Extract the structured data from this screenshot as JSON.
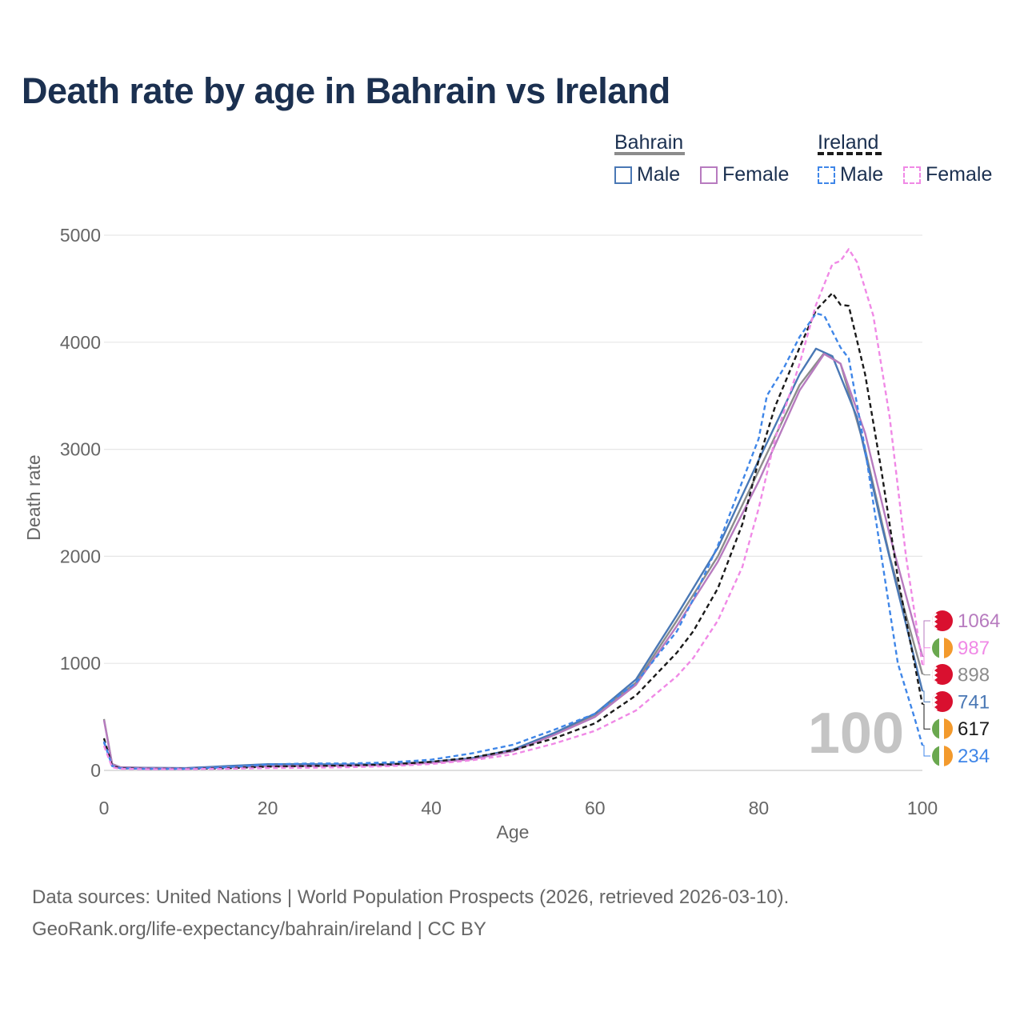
{
  "title": "Death rate by age in Bahrain vs Ireland",
  "legend": {
    "groups": [
      {
        "name": "Bahrain",
        "line_color": "#8c8c8c",
        "line_style": "solid",
        "items": [
          {
            "label": "Male",
            "color": "#4a78b5"
          },
          {
            "label": "Female",
            "color": "#b77bbf"
          }
        ]
      },
      {
        "name": "Ireland",
        "line_color": "#1a1a1a",
        "line_style": "dashed",
        "items": [
          {
            "label": "Male",
            "color": "#3f86e8"
          },
          {
            "label": "Female",
            "color": "#f089e6"
          }
        ]
      }
    ]
  },
  "chart_data": {
    "type": "line",
    "title": "Death rate by age in Bahrain vs Ireland",
    "xlabel": "Age",
    "ylabel": "Death rate",
    "xlim": [
      0,
      100
    ],
    "ylim": [
      0,
      5000
    ],
    "xticks": [
      0,
      20,
      40,
      60,
      80,
      100
    ],
    "yticks": [
      0,
      1000,
      2000,
      3000,
      4000,
      5000
    ],
    "grid": true,
    "watermark": "100",
    "series": [
      {
        "name": "Bahrain Total",
        "color": "#8c8c8c",
        "dash": "solid",
        "end_label": "898",
        "points": [
          [
            0,
            480
          ],
          [
            1,
            60
          ],
          [
            2,
            30
          ],
          [
            5,
            25
          ],
          [
            10,
            20
          ],
          [
            15,
            35
          ],
          [
            20,
            48
          ],
          [
            25,
            50
          ],
          [
            30,
            50
          ],
          [
            35,
            55
          ],
          [
            40,
            75
          ],
          [
            45,
            110
          ],
          [
            50,
            190
          ],
          [
            55,
            340
          ],
          [
            60,
            520
          ],
          [
            65,
            820
          ],
          [
            70,
            1400
          ],
          [
            75,
            2000
          ],
          [
            80,
            2800
          ],
          [
            85,
            3600
          ],
          [
            88,
            3900
          ],
          [
            90,
            3800
          ],
          [
            93,
            3000
          ],
          [
            96,
            2000
          ],
          [
            100,
            898
          ]
        ]
      },
      {
        "name": "Bahrain Male",
        "color": "#4a78b5",
        "dash": "solid",
        "end_label": "741",
        "points": [
          [
            0,
            260
          ],
          [
            1,
            55
          ],
          [
            2,
            28
          ],
          [
            5,
            24
          ],
          [
            10,
            22
          ],
          [
            15,
            40
          ],
          [
            20,
            58
          ],
          [
            25,
            58
          ],
          [
            30,
            55
          ],
          [
            35,
            60
          ],
          [
            40,
            80
          ],
          [
            45,
            115
          ],
          [
            50,
            195
          ],
          [
            55,
            350
          ],
          [
            60,
            530
          ],
          [
            65,
            850
          ],
          [
            70,
            1450
          ],
          [
            75,
            2080
          ],
          [
            80,
            2900
          ],
          [
            85,
            3700
          ],
          [
            87,
            3940
          ],
          [
            89,
            3870
          ],
          [
            92,
            3300
          ],
          [
            95,
            2300
          ],
          [
            100,
            741
          ]
        ]
      },
      {
        "name": "Bahrain Female",
        "color": "#b77bbf",
        "dash": "solid",
        "end_label": "1064",
        "points": [
          [
            0,
            470
          ],
          [
            1,
            55
          ],
          [
            2,
            28
          ],
          [
            5,
            22
          ],
          [
            10,
            18
          ],
          [
            15,
            28
          ],
          [
            20,
            38
          ],
          [
            25,
            42
          ],
          [
            30,
            45
          ],
          [
            35,
            50
          ],
          [
            40,
            70
          ],
          [
            45,
            105
          ],
          [
            50,
            180
          ],
          [
            55,
            330
          ],
          [
            60,
            500
          ],
          [
            65,
            800
          ],
          [
            70,
            1350
          ],
          [
            75,
            1950
          ],
          [
            80,
            2700
          ],
          [
            85,
            3550
          ],
          [
            88,
            3890
          ],
          [
            90,
            3800
          ],
          [
            93,
            3150
          ],
          [
            96,
            2200
          ],
          [
            100,
            1064
          ]
        ]
      },
      {
        "name": "Ireland Total",
        "color": "#1a1a1a",
        "dash": "dashed",
        "end_label": "617",
        "points": [
          [
            0,
            300
          ],
          [
            1,
            40
          ],
          [
            2,
            20
          ],
          [
            5,
            15
          ],
          [
            10,
            15
          ],
          [
            15,
            20
          ],
          [
            20,
            35
          ],
          [
            25,
            40
          ],
          [
            30,
            45
          ],
          [
            35,
            55
          ],
          [
            40,
            80
          ],
          [
            45,
            120
          ],
          [
            50,
            190
          ],
          [
            55,
            300
          ],
          [
            60,
            440
          ],
          [
            65,
            700
          ],
          [
            70,
            1100
          ],
          [
            72,
            1300
          ],
          [
            75,
            1700
          ],
          [
            78,
            2300
          ],
          [
            80,
            2900
          ],
          [
            82,
            3400
          ],
          [
            85,
            3950
          ],
          [
            87,
            4300
          ],
          [
            89,
            4460
          ],
          [
            90,
            4350
          ],
          [
            91,
            4340
          ],
          [
            93,
            3700
          ],
          [
            95,
            2800
          ],
          [
            97,
            1800
          ],
          [
            100,
            617
          ]
        ]
      },
      {
        "name": "Ireland Male",
        "color": "#3f86e8",
        "dash": "dashed",
        "end_label": "234",
        "points": [
          [
            0,
            270
          ],
          [
            1,
            40
          ],
          [
            2,
            20
          ],
          [
            5,
            15
          ],
          [
            10,
            15
          ],
          [
            15,
            30
          ],
          [
            20,
            55
          ],
          [
            25,
            65
          ],
          [
            30,
            65
          ],
          [
            35,
            75
          ],
          [
            40,
            100
          ],
          [
            45,
            160
          ],
          [
            50,
            240
          ],
          [
            55,
            380
          ],
          [
            60,
            530
          ],
          [
            65,
            820
          ],
          [
            70,
            1300
          ],
          [
            72,
            1600
          ],
          [
            75,
            2100
          ],
          [
            78,
            2700
          ],
          [
            80,
            3100
          ],
          [
            81,
            3500
          ],
          [
            83,
            3750
          ],
          [
            85,
            4050
          ],
          [
            87,
            4270
          ],
          [
            88,
            4250
          ],
          [
            90,
            3950
          ],
          [
            91,
            3850
          ],
          [
            93,
            3000
          ],
          [
            95,
            2000
          ],
          [
            97,
            1000
          ],
          [
            99,
            500
          ],
          [
            100,
            234
          ]
        ]
      },
      {
        "name": "Ireland Female",
        "color": "#f089e6",
        "dash": "dashed",
        "end_label": "987",
        "points": [
          [
            0,
            230
          ],
          [
            1,
            30
          ],
          [
            2,
            15
          ],
          [
            5,
            12
          ],
          [
            10,
            12
          ],
          [
            15,
            15
          ],
          [
            20,
            22
          ],
          [
            25,
            25
          ],
          [
            30,
            30
          ],
          [
            35,
            40
          ],
          [
            40,
            60
          ],
          [
            45,
            95
          ],
          [
            50,
            150
          ],
          [
            55,
            250
          ],
          [
            60,
            370
          ],
          [
            65,
            560
          ],
          [
            70,
            880
          ],
          [
            72,
            1050
          ],
          [
            75,
            1400
          ],
          [
            78,
            1900
          ],
          [
            80,
            2450
          ],
          [
            82,
            3100
          ],
          [
            85,
            3800
          ],
          [
            87,
            4350
          ],
          [
            89,
            4730
          ],
          [
            90,
            4760
          ],
          [
            91,
            4870
          ],
          [
            92,
            4750
          ],
          [
            94,
            4250
          ],
          [
            96,
            3300
          ],
          [
            98,
            2000
          ],
          [
            100,
            987
          ]
        ]
      }
    ]
  },
  "source_lines": [
    "Data sources: United Nations | World Population Prospects (2026, retrieved 2026-03-10).",
    "GeoRank.org/life-expectancy/bahrain/ireland | CC BY"
  ]
}
